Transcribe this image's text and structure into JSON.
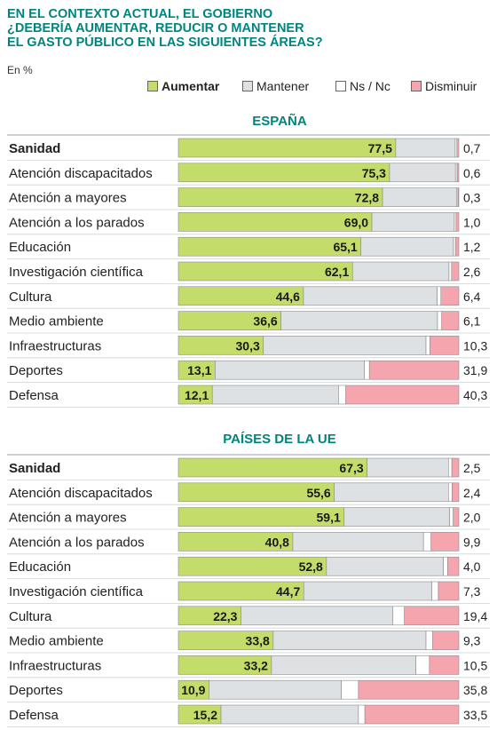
{
  "header": {
    "title_lines": [
      "EN EL CONTEXTO ACTUAL, EL GOBIERNO",
      "¿DEBERÍA AUMENTAR, REDUCIR O MANTENER",
      "EL GASTO PÚBLICO EN LAS SIGUIENTES ÁREAS?"
    ],
    "unit": "En %"
  },
  "legend": [
    {
      "label": "Aumentar",
      "color": "#c3dc6a"
    },
    {
      "label": "Mantener",
      "color": "#dde1e4"
    },
    {
      "label": "Ns / Nc",
      "color": "#ffffff"
    },
    {
      "label": "Disminuir",
      "color": "#f4a5ae"
    }
  ],
  "chart_data": [
    {
      "type": "bar",
      "stacked": true,
      "orientation": "horizontal",
      "title": "ESPAÑA",
      "categories": [
        "Sanidad",
        "Atención discapacitados",
        "Atención a mayores",
        "Atención a los parados",
        "Educación",
        "Investigación científica",
        "Cultura",
        "Medio ambiente",
        "Infraestructuras",
        "Deportes",
        "Defensa"
      ],
      "series": [
        {
          "name": "Aumentar",
          "values": [
            77.5,
            75.3,
            72.8,
            69.0,
            65.1,
            62.1,
            44.6,
            36.6,
            30.3,
            13.1,
            12.1
          ]
        },
        {
          "name": "Mantener",
          "values": [
            21.2,
            23.5,
            26.5,
            29.4,
            33.0,
            34.4,
            47.7,
            55.8,
            58.0,
            53.2,
            45.0
          ]
        },
        {
          "name": "Ns / Nc",
          "values": [
            0.6,
            0.6,
            0.4,
            0.6,
            0.7,
            0.9,
            1.3,
            1.5,
            1.4,
            1.8,
            2.6
          ]
        },
        {
          "name": "Disminuir",
          "values": [
            0.7,
            0.6,
            0.3,
            1.0,
            1.2,
            2.6,
            6.4,
            6.1,
            10.3,
            31.9,
            40.3
          ]
        }
      ],
      "value_labels_aumentar": [
        "77,5",
        "75,3",
        "72,8",
        "69,0",
        "65,1",
        "62,1",
        "44,6",
        "36,6",
        "30,3",
        "13,1",
        "12,1"
      ],
      "value_labels_disminuir": [
        "0,7",
        "0,6",
        "0,3",
        "1,0",
        "1,2",
        "2,6",
        "6,4",
        "6,1",
        "10,3",
        "31,9",
        "40,3"
      ],
      "xlim": [
        0,
        100
      ]
    },
    {
      "type": "bar",
      "stacked": true,
      "orientation": "horizontal",
      "title": "PAÍSES DE LA UE",
      "categories": [
        "Sanidad",
        "Atención discapacitados",
        "Atención a mayores",
        "Atención a los parados",
        "Educación",
        "Investigación científica",
        "Cultura",
        "Medio ambiente",
        "Infraestructuras",
        "Deportes",
        "Defensa"
      ],
      "series": [
        {
          "name": "Aumentar",
          "values": [
            67.3,
            55.6,
            59.1,
            40.8,
            52.8,
            44.7,
            22.3,
            33.8,
            33.2,
            10.9,
            15.2
          ]
        },
        {
          "name": "Mantener",
          "values": [
            29.0,
            40.7,
            37.6,
            46.6,
            41.7,
            45.7,
            54.2,
            54.5,
            51.5,
            47.2,
            49.0
          ]
        },
        {
          "name": "Ns / Nc",
          "values": [
            1.2,
            1.3,
            1.3,
            2.7,
            1.5,
            2.3,
            4.1,
            2.4,
            4.8,
            6.1,
            2.3
          ]
        },
        {
          "name": "Disminuir",
          "values": [
            2.5,
            2.4,
            2.0,
            9.9,
            4.0,
            7.3,
            19.4,
            9.3,
            10.5,
            35.8,
            33.5
          ]
        }
      ],
      "value_labels_aumentar": [
        "67,3",
        "55,6",
        "59,1",
        "40,8",
        "52,8",
        "44,7",
        "22,3",
        "33,8",
        "33,2",
        "10,9",
        "15,2"
      ],
      "value_labels_disminuir": [
        "2,5",
        "2,4",
        "2,0",
        "9,9",
        "4,0",
        "7,3",
        "19,4",
        "9,3",
        "10,5",
        "35,8",
        "33,5"
      ],
      "xlim": [
        0,
        100
      ]
    }
  ]
}
